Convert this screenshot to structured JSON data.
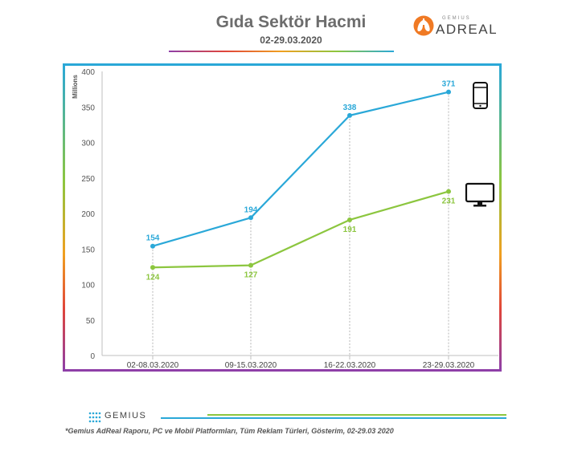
{
  "header": {
    "title": "Gıda Sektör Hacmi",
    "subtitle": "02-29.03.2020"
  },
  "logo": {
    "small": "GEMIUS",
    "main": "ADREAL"
  },
  "chart_data": {
    "type": "line",
    "title": "Gıda Sektör Hacmi",
    "subtitle": "02-29.03.2020",
    "ylabel": "Millions",
    "xlabel": "",
    "categories": [
      "02-08.03.2020",
      "09-15.03.2020",
      "16-22.03.2020",
      "23-29.03.2020"
    ],
    "ylim": [
      0,
      400
    ],
    "yticks": [
      0,
      50,
      100,
      150,
      200,
      250,
      300,
      350,
      400
    ],
    "grid": false,
    "series": [
      {
        "icon": "mobile-phone-icon",
        "color": "#2aa8d8",
        "values": [
          154,
          194,
          338,
          371
        ]
      },
      {
        "icon": "desktop-monitor-icon",
        "color": "#8cc63f",
        "values": [
          124,
          127,
          191,
          231
        ]
      }
    ]
  },
  "footer": {
    "brand": "GEMIUS",
    "note": "*Gemius AdReal Raporu, PC ve Mobil Platformları, Tüm Reklam Türleri, Gösterim, 02-29.03 2020"
  }
}
